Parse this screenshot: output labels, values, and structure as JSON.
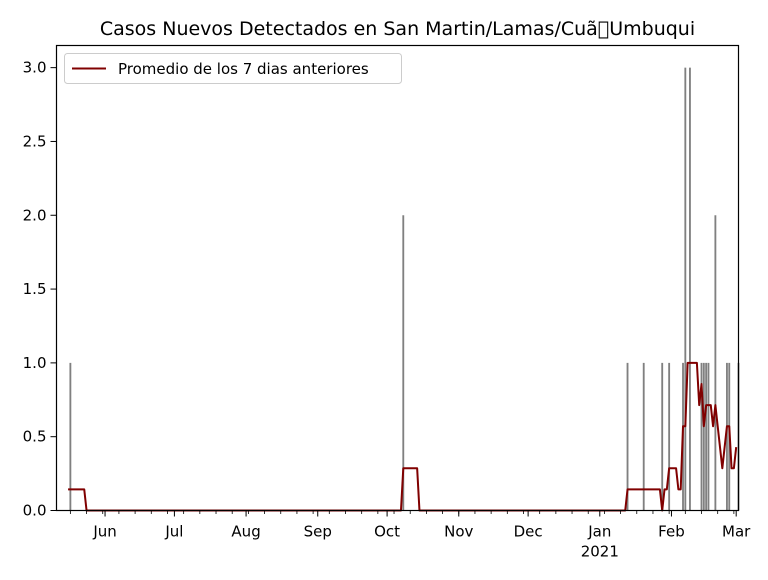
{
  "chart_data": {
    "type": "bar",
    "title": "Casos Nuevos Detectados en San Martin/Lamas/Cuã\u0000Umbuqui",
    "xlabel": "",
    "ylabel": "",
    "ylim": [
      0,
      3.15
    ],
    "xlim": [
      "2020-05-11",
      "2021-03-02"
    ],
    "x_tick_labels": [
      {
        "date": "2020-06-01",
        "label": "Jun"
      },
      {
        "date": "2020-07-01",
        "label": "Jul"
      },
      {
        "date": "2020-08-01",
        "label": "Aug"
      },
      {
        "date": "2020-09-01",
        "label": "Sep"
      },
      {
        "date": "2020-10-01",
        "label": "Oct"
      },
      {
        "date": "2020-11-01",
        "label": "Nov"
      },
      {
        "date": "2020-12-01",
        "label": "Dec"
      },
      {
        "date": "2021-01-01",
        "label": "Jan",
        "sublabel": "2021"
      },
      {
        "date": "2021-02-01",
        "label": "Feb"
      },
      {
        "date": "2021-03-01",
        "label": "Mar"
      }
    ],
    "y_ticks": [
      0.0,
      0.5,
      1.0,
      1.5,
      2.0,
      2.5,
      3.0
    ],
    "y_tick_labels": [
      "0.0",
      "0.5",
      "1.0",
      "1.5",
      "2.0",
      "2.5",
      "3.0"
    ],
    "grid": false,
    "legend_position": "top-left",
    "bar_color": "#808080",
    "line_color": "#800000",
    "bars": {
      "name": "",
      "points": [
        {
          "x": "2020-05-17",
          "y": 1
        },
        {
          "x": "2020-10-08",
          "y": 2
        },
        {
          "x": "2021-01-13",
          "y": 1
        },
        {
          "x": "2021-01-20",
          "y": 1
        },
        {
          "x": "2021-01-28",
          "y": 1
        },
        {
          "x": "2021-01-31",
          "y": 1
        },
        {
          "x": "2021-02-06",
          "y": 1
        },
        {
          "x": "2021-02-07",
          "y": 3
        },
        {
          "x": "2021-02-09",
          "y": 3
        },
        {
          "x": "2021-02-14",
          "y": 1
        },
        {
          "x": "2021-02-15",
          "y": 1
        },
        {
          "x": "2021-02-16",
          "y": 1
        },
        {
          "x": "2021-02-17",
          "y": 1
        },
        {
          "x": "2021-02-20",
          "y": 2
        },
        {
          "x": "2021-02-25",
          "y": 1
        },
        {
          "x": "2021-02-26",
          "y": 1
        },
        {
          "x": "2021-03-02",
          "y": 1
        }
      ]
    },
    "series": [
      {
        "name": "Promedio de los 7 dias anteriores",
        "type": "line",
        "points": [
          {
            "x": "2020-05-16",
            "y": 0.143
          },
          {
            "x": "2020-05-23",
            "y": 0.143
          },
          {
            "x": "2020-05-24",
            "y": 0
          },
          {
            "x": "2020-10-07",
            "y": 0
          },
          {
            "x": "2020-10-08",
            "y": 0.286
          },
          {
            "x": "2020-10-14",
            "y": 0.286
          },
          {
            "x": "2020-10-15",
            "y": 0
          },
          {
            "x": "2021-01-12",
            "y": 0
          },
          {
            "x": "2021-01-13",
            "y": 0.143
          },
          {
            "x": "2021-01-27",
            "y": 0.143
          },
          {
            "x": "2021-01-28",
            "y": 0
          },
          {
            "x": "2021-01-29",
            "y": 0.143
          },
          {
            "x": "2021-01-30",
            "y": 0.143
          },
          {
            "x": "2021-01-31",
            "y": 0.286
          },
          {
            "x": "2021-02-03",
            "y": 0.286
          },
          {
            "x": "2021-02-04",
            "y": 0.143
          },
          {
            "x": "2021-02-05",
            "y": 0.143
          },
          {
            "x": "2021-02-06",
            "y": 0.571
          },
          {
            "x": "2021-02-07",
            "y": 0.571
          },
          {
            "x": "2021-02-08",
            "y": 1.0
          },
          {
            "x": "2021-02-12",
            "y": 1.0
          },
          {
            "x": "2021-02-13",
            "y": 0.714
          },
          {
            "x": "2021-02-14",
            "y": 0.857
          },
          {
            "x": "2021-02-15",
            "y": 0.571
          },
          {
            "x": "2021-02-16",
            "y": 0.714
          },
          {
            "x": "2021-02-18",
            "y": 0.714
          },
          {
            "x": "2021-02-19",
            "y": 0.571
          },
          {
            "x": "2021-02-20",
            "y": 0.714
          },
          {
            "x": "2021-02-21",
            "y": 0.571
          },
          {
            "x": "2021-02-23",
            "y": 0.286
          },
          {
            "x": "2021-02-24",
            "y": 0.429
          },
          {
            "x": "2021-02-25",
            "y": 0.571
          },
          {
            "x": "2021-02-26",
            "y": 0.571
          },
          {
            "x": "2021-02-27",
            "y": 0.286
          },
          {
            "x": "2021-02-28",
            "y": 0.286
          },
          {
            "x": "2021-03-01",
            "y": 0.429
          }
        ]
      }
    ]
  }
}
